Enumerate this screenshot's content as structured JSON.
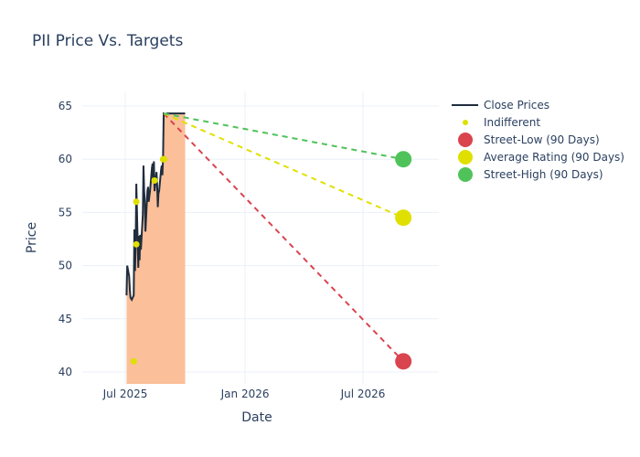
{
  "chart_data": {
    "type": "line",
    "title": "PII Price Vs. Targets",
    "xlabel": "Date",
    "ylabel": "Price",
    "ylim": [
      39.2,
      66.3
    ],
    "xlim": [
      "2025-04-15",
      "2026-10-10"
    ],
    "yticks": [
      40,
      45,
      50,
      55,
      60,
      65
    ],
    "xticks": [
      {
        "date": "2025-07-01",
        "label": "Jul 2025"
      },
      {
        "date": "2026-01-01",
        "label": "Jan 2026"
      },
      {
        "date": "2026-07-01",
        "label": "Jul 2026"
      }
    ],
    "grid": true,
    "legend_position": "top-right",
    "colors": {
      "close": "#1f2d3d",
      "fill": "#fbbf9a",
      "indifferent": "#e0e000",
      "low": "#d9444f",
      "avg": "#e0e000",
      "high": "#4fc35a"
    },
    "legend": [
      {
        "key": "close",
        "label": "Close Prices",
        "kind": "line"
      },
      {
        "key": "indifferent",
        "label": "Indifferent",
        "kind": "small-dot"
      },
      {
        "key": "low",
        "label": "Street-Low (90 Days)",
        "kind": "dot"
      },
      {
        "key": "avg",
        "label": "Average Rating (90 Days)",
        "kind": "dot"
      },
      {
        "key": "high",
        "label": "Street-High (90 Days)",
        "kind": "dot"
      }
    ],
    "close_prices": {
      "x": [
        "2025-07-03",
        "2025-07-04",
        "2025-07-07",
        "2025-07-08",
        "2025-07-09",
        "2025-07-10",
        "2025-07-11",
        "2025-07-14",
        "2025-07-15",
        "2025-07-16",
        "2025-07-17",
        "2025-07-18",
        "2025-07-21",
        "2025-07-22",
        "2025-07-23",
        "2025-07-24",
        "2025-07-25",
        "2025-07-28",
        "2025-07-29",
        "2025-07-30",
        "2025-07-31",
        "2025-08-01",
        "2025-08-04",
        "2025-08-05",
        "2025-08-06",
        "2025-08-07",
        "2025-08-08",
        "2025-08-11",
        "2025-08-12",
        "2025-08-13",
        "2025-08-14",
        "2025-08-15",
        "2025-08-18",
        "2025-08-19",
        "2025-08-20",
        "2025-08-21",
        "2025-08-22",
        "2025-08-25",
        "2025-08-26",
        "2025-08-27",
        "2025-08-28",
        "2025-08-29",
        "2025-09-02",
        "2025-09-03",
        "2025-09-04",
        "2025-09-05",
        "2025-09-08",
        "2025-09-09",
        "2025-09-10",
        "2025-09-11",
        "2025-09-12",
        "2025-09-15",
        "2025-09-16",
        "2025-09-17",
        "2025-09-18",
        "2025-09-19",
        "2025-09-22",
        "2025-09-23",
        "2025-09-24",
        "2025-09-25",
        "2025-09-26",
        "2025-09-29",
        "2025-09-30",
        "2025-10-01"
      ],
      "values": [
        47.2,
        50.0,
        49.0,
        47.8,
        47.0,
        46.9,
        46.8,
        47.2,
        53.4,
        49.5,
        52.0,
        57.7,
        49.8,
        52.8,
        50.5,
        52.9,
        51.5,
        54.8,
        59.4,
        57.0,
        56.2,
        53.2,
        57.0,
        57.4,
        56.0,
        56.5,
        57.0,
        59.2,
        59.6,
        58.0,
        59.8,
        57.0,
        58.8,
        57.5,
        55.5,
        56.8,
        57.0,
        59.0,
        59.4,
        58.5,
        60.0,
        64.3,
        64.2,
        64.3,
        64.3,
        64.3,
        64.3,
        64.3,
        64.3,
        64.3,
        64.3,
        64.3,
        64.3,
        64.3,
        64.3,
        64.3,
        64.3,
        64.3,
        64.3,
        64.3,
        64.3,
        64.3,
        64.3,
        64.3
      ]
    },
    "indifferent": [
      {
        "x": "2025-07-14",
        "y": 41
      },
      {
        "x": "2025-07-18",
        "y": 56
      },
      {
        "x": "2025-07-18",
        "y": 52
      },
      {
        "x": "2025-08-15",
        "y": 58
      },
      {
        "x": "2025-08-28",
        "y": 60
      },
      {
        "x": "2025-08-30",
        "y": 60
      }
    ],
    "targets": {
      "start": {
        "x": "2025-08-29",
        "y": 64.3
      },
      "end_x": "2026-09-01",
      "low": 41,
      "avg": 54.5,
      "high": 60
    }
  }
}
